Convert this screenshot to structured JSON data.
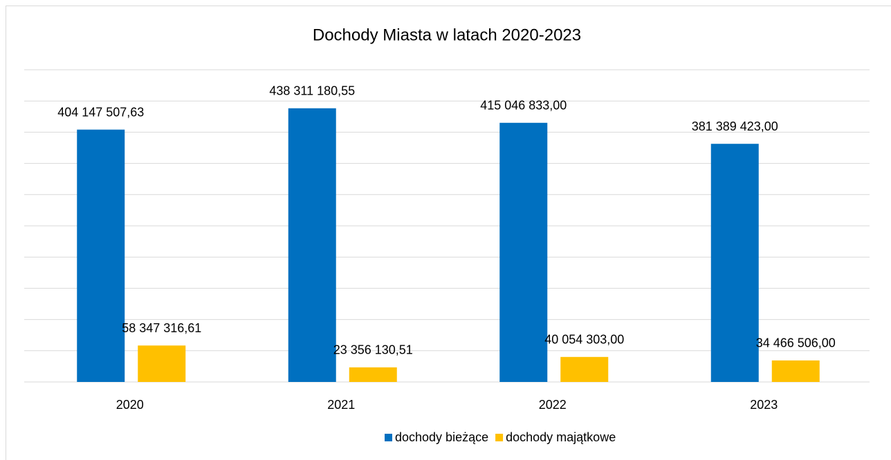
{
  "chart_data": {
    "type": "bar",
    "title": "Dochody Miasta w latach 2020-2023",
    "categories": [
      "2020",
      "2021",
      "2022",
      "2023"
    ],
    "series": [
      {
        "name": "dochody bieżące",
        "color": "#0070c0",
        "values": [
          404147507.63,
          438311180.55,
          415046833.0,
          381389423.0
        ],
        "value_labels": [
          "404 147 507,63",
          "438 311 180,55",
          "415 046 833,00",
          "381 389 423,00"
        ]
      },
      {
        "name": "dochody majątkowe",
        "color": "#ffc000",
        "values": [
          58347316.61,
          23356130.51,
          40054303.0,
          34466506.0
        ],
        "value_labels": [
          "58 347 316,61",
          "23 356 130,51",
          "40 054 303,00",
          "34 466 506,00"
        ]
      }
    ],
    "ylim": [
      0,
      500000000
    ],
    "yticks": [
      0,
      50000000,
      100000000,
      150000000,
      200000000,
      250000000,
      300000000,
      350000000,
      400000000,
      450000000,
      500000000
    ],
    "grid": true,
    "legend": "bottom"
  }
}
